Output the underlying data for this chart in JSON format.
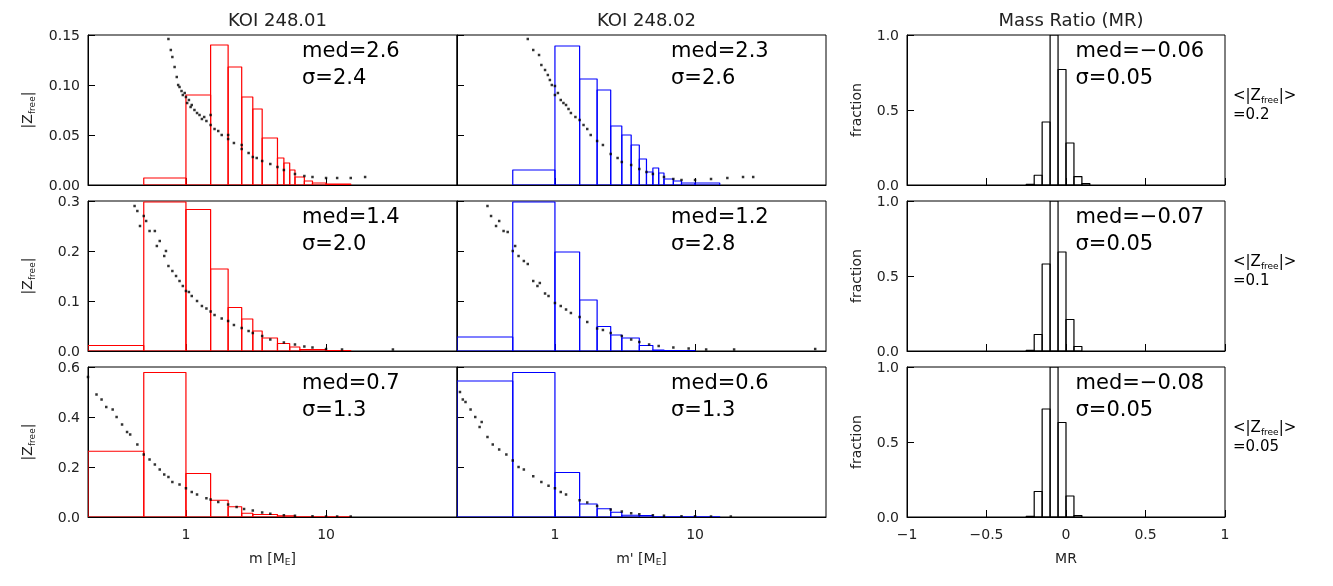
{
  "chart_data": [
    {
      "type": "scatter",
      "title": "KOI 248.01",
      "ylabel": "|Z$_{free}$|",
      "log": "x",
      "marker": "square",
      "tick_labels": "y",
      "xlim": [
        0.2,
        86
      ],
      "xticks": [
        1,
        10
      ],
      "ylim": [
        0,
        0.15
      ],
      "yticks": [
        {
          "value": 0,
          "label": "0.00"
        },
        {
          "value": 0.05,
          "label": "0.05"
        },
        {
          "value": 0.1,
          "label": "0.10"
        },
        {
          "value": 0.15,
          "label": "0.15"
        }
      ],
      "annotations": [
        "med=2.6",
        "σ=2.4"
      ],
      "series": [
        {
          "color": "#000000",
          "x": [
            0.75,
            0.78,
            0.8,
            0.83,
            0.86,
            0.88,
            0.9,
            0.93,
            0.95,
            0.98,
            1.0,
            1.02,
            1.05,
            1.08,
            1.1,
            1.15,
            1.2,
            1.25,
            1.3,
            1.35,
            1.4,
            1.5,
            1.5,
            1.6,
            1.7,
            1.8,
            2.0,
            2.0,
            2.2,
            2.5,
            2.5,
            2.8,
            3.0,
            3.2,
            3.5,
            4.0,
            4.5,
            5.0,
            6.0,
            7.0,
            8.0,
            10,
            12,
            15,
            19
          ],
          "values": [
            0.146,
            0.135,
            0.128,
            0.118,
            0.108,
            0.1,
            0.098,
            0.094,
            0.09,
            0.092,
            0.088,
            0.082,
            0.085,
            0.078,
            0.08,
            0.075,
            0.072,
            0.07,
            0.066,
            0.068,
            0.064,
            0.06,
            0.07,
            0.056,
            0.054,
            0.05,
            0.046,
            0.05,
            0.042,
            0.036,
            0.04,
            0.032,
            0.028,
            0.027,
            0.024,
            0.021,
            0.018,
            0.015,
            0.011,
            0.009,
            0.008,
            0.007,
            0.007,
            0.007,
            0.008
          ]
        },
        {
          "type": "histogram",
          "color": "#ff0000",
          "bins": [
            0.5,
            1,
            1.5,
            2,
            2.5,
            3,
            3.5,
            4.5,
            5,
            5.5,
            6,
            7,
            8,
            10,
            15
          ],
          "values": [
            0.007,
            0.09,
            0.14,
            0.118,
            0.088,
            0.076,
            0.047,
            0.027,
            0.022,
            0.015,
            0.008,
            0.004,
            0.002,
            0.001
          ]
        }
      ]
    },
    {
      "type": "scatter",
      "title": "KOI 248.02",
      "log": "x",
      "marker": "square",
      "tick_labels": false,
      "xlim": [
        0.2,
        86
      ],
      "xticks": [
        1,
        10
      ],
      "ylim": [
        0,
        0.15
      ],
      "yticks": [
        0,
        0.05,
        0.1,
        0.15
      ],
      "annotations": [
        "med=2.3",
        "σ=2.6"
      ],
      "series": [
        {
          "color": "#000000",
          "x": [
            0.64,
            0.7,
            0.77,
            0.8,
            0.85,
            0.89,
            0.92,
            0.95,
            1.0,
            1.0,
            1.05,
            1.1,
            1.15,
            1.2,
            1.25,
            1.3,
            1.4,
            1.5,
            1.6,
            1.7,
            1.8,
            2.0,
            2.2,
            2.5,
            2.8,
            3.0,
            3.5,
            4.0,
            4.5,
            5.0,
            6.0,
            7.0,
            8.0,
            10,
            13,
            17,
            22,
            26
          ],
          "values": [
            0.146,
            0.135,
            0.13,
            0.12,
            0.115,
            0.11,
            0.105,
            0.1,
            0.099,
            0.09,
            0.092,
            0.085,
            0.082,
            0.08,
            0.076,
            0.072,
            0.068,
            0.065,
            0.06,
            0.056,
            0.05,
            0.044,
            0.04,
            0.031,
            0.027,
            0.023,
            0.02,
            0.016,
            0.013,
            0.011,
            0.008,
            0.006,
            0.005,
            0.005,
            0.006,
            0.007,
            0.008,
            0.008
          ]
        },
        {
          "type": "histogram",
          "color": "#0000ff",
          "bins": [
            0.5,
            1,
            1.5,
            2,
            2.5,
            3,
            3.5,
            4,
            4.5,
            5,
            5.5,
            6,
            7,
            8,
            10,
            15
          ],
          "values": [
            0.015,
            0.139,
            0.106,
            0.095,
            0.059,
            0.05,
            0.04,
            0.026,
            0.013,
            0.017,
            0.012,
            0.006,
            0.004,
            0.002,
            0.002
          ]
        }
      ]
    },
    {
      "type": "histogram",
      "title": "Mass Ratio (MR)",
      "ylabel": "fraction",
      "tick_labels": "y",
      "color": "#000000",
      "xlim": [
        -1,
        1
      ],
      "xticks": [
        -1,
        -0.5,
        0,
        0.5,
        1
      ],
      "ylim": [
        0,
        1
      ],
      "yticks": [
        {
          "value": 0,
          "label": "0.0"
        },
        0.5,
        {
          "value": 1,
          "label": "1.0"
        }
      ],
      "annotations": [
        "med=−0.06",
        "σ=0.05",
        "<|Z$_{free}$|>\n=0.2"
      ],
      "bins": [
        -0.25,
        -0.2,
        -0.15,
        -0.1,
        -0.05,
        0,
        0.05,
        0.1,
        0.15
      ],
      "values": [
        0.005,
        0.065,
        0.42,
        1.0,
        0.77,
        0.28,
        0.056,
        0.01
      ]
    },
    {
      "type": "scatter",
      "ylabel": "|Z$_{free}$|",
      "log": "x",
      "marker": "square",
      "tick_labels": "y",
      "xlim": [
        0.2,
        86
      ],
      "xticks": [
        1,
        10
      ],
      "ylim": [
        0,
        0.3
      ],
      "yticks": [
        {
          "value": 0,
          "label": "0.0"
        },
        0.1,
        0.2,
        0.3
      ],
      "annotations": [
        "med=1.4",
        "σ=2.0"
      ],
      "series": [
        {
          "color": "#000000",
          "x": [
            0.43,
            0.45,
            0.47,
            0.5,
            0.52,
            0.55,
            0.6,
            0.62,
            0.65,
            0.7,
            0.72,
            0.75,
            0.8,
            0.85,
            0.9,
            0.95,
            1.0,
            1.05,
            1.1,
            1.2,
            1.3,
            1.4,
            1.5,
            1.6,
            1.8,
            2.0,
            2.2,
            2.5,
            2.8,
            3.0,
            3.5,
            4.0,
            5.0,
            6.0,
            7.0,
            8.0,
            10,
            13,
            30
          ],
          "values": [
            0.29,
            0.28,
            0.25,
            0.27,
            0.26,
            0.24,
            0.24,
            0.21,
            0.22,
            0.19,
            0.2,
            0.17,
            0.16,
            0.15,
            0.14,
            0.13,
            0.12,
            0.118,
            0.11,
            0.1,
            0.09,
            0.085,
            0.079,
            0.072,
            0.065,
            0.06,
            0.052,
            0.046,
            0.04,
            0.036,
            0.03,
            0.023,
            0.017,
            0.013,
            0.009,
            0.007,
            0.004,
            0.003,
            0.003
          ]
        },
        {
          "type": "histogram",
          "color": "#ff0000",
          "bins": [
            0.2,
            0.5,
            1,
            1.5,
            2,
            2.5,
            3,
            3.5,
            4.5,
            5.5,
            6.5,
            10,
            15
          ],
          "values": [
            0.011,
            0.298,
            0.283,
            0.164,
            0.087,
            0.064,
            0.04,
            0.026,
            0.015,
            0.008,
            0.003,
            0.001
          ]
        }
      ]
    },
    {
      "type": "scatter",
      "log": "x",
      "marker": "square",
      "tick_labels": false,
      "xlim": [
        0.2,
        86
      ],
      "xticks": [
        1,
        10
      ],
      "ylim": [
        0,
        0.3
      ],
      "yticks": [
        0,
        0.1,
        0.2,
        0.3
      ],
      "annotations": [
        "med=1.2",
        "σ=2.8"
      ],
      "series": [
        {
          "color": "#000000",
          "x": [
            0.33,
            0.35,
            0.38,
            0.4,
            0.43,
            0.46,
            0.5,
            0.52,
            0.55,
            0.6,
            0.64,
            0.7,
            0.75,
            0.78,
            0.85,
            0.9,
            1.0,
            1.1,
            1.2,
            1.3,
            1.5,
            1.7,
            2.0,
            2.2,
            2.5,
            3.0,
            3.5,
            4.0,
            4.7,
            5.5,
            7.0,
            9.0,
            12,
            19,
            72
          ],
          "values": [
            0.29,
            0.27,
            0.25,
            0.26,
            0.24,
            0.238,
            0.2,
            0.21,
            0.19,
            0.18,
            0.174,
            0.14,
            0.13,
            0.136,
            0.115,
            0.11,
            0.096,
            0.09,
            0.083,
            0.076,
            0.068,
            0.058,
            0.045,
            0.042,
            0.036,
            0.03,
            0.023,
            0.018,
            0.013,
            0.01,
            0.007,
            0.005,
            0.003,
            0.003,
            0.004
          ]
        },
        {
          "type": "histogram",
          "color": "#0000ff",
          "bins": [
            0.2,
            0.5,
            1,
            1.5,
            2,
            2.5,
            3,
            4,
            5,
            6,
            10
          ],
          "values": [
            0.028,
            0.298,
            0.198,
            0.102,
            0.049,
            0.032,
            0.026,
            0.011,
            0.002,
            0.001
          ]
        }
      ]
    },
    {
      "type": "histogram",
      "ylabel": "fraction",
      "tick_labels": "y",
      "color": "#000000",
      "xlim": [
        -1,
        1
      ],
      "xticks": [
        -1,
        -0.5,
        0,
        0.5,
        1
      ],
      "ylim": [
        0,
        1
      ],
      "yticks": [
        {
          "value": 0,
          "label": "0.0"
        },
        0.5,
        {
          "value": 1,
          "label": "1.0"
        }
      ],
      "annotations": [
        "med=−0.07",
        "σ=0.05",
        "<|Z$_{free}$|>\n=0.1"
      ],
      "bins": [
        -0.25,
        -0.2,
        -0.15,
        -0.1,
        -0.05,
        0,
        0.05,
        0.1
      ],
      "values": [
        0.005,
        0.11,
        0.58,
        1.0,
        0.66,
        0.21,
        0.03
      ]
    },
    {
      "type": "scatter",
      "xlabel": "m [M$_{E}$]",
      "ylabel": "|Z$_{free}$|",
      "log": "x",
      "marker": "square",
      "xlim": [
        0.2,
        86
      ],
      "xticks": [
        1,
        10
      ],
      "ylim": [
        0,
        0.6
      ],
      "yticks": [
        {
          "value": 0,
          "label": "0.0"
        },
        0.2,
        0.4,
        0.6
      ],
      "annotations": [
        "med=0.7",
        "σ=1.3"
      ],
      "series": [
        {
          "color": "#000000",
          "x": [
            0.2,
            0.23,
            0.25,
            0.27,
            0.3,
            0.32,
            0.35,
            0.38,
            0.4,
            0.45,
            0.5,
            0.55,
            0.6,
            0.65,
            0.7,
            0.75,
            0.8,
            0.9,
            1.0,
            1.1,
            1.2,
            1.4,
            1.5,
            1.7,
            2.0,
            2.3,
            2.6,
            3.0,
            3.5,
            4.0,
            5.0,
            6.0,
            8.0,
            10,
            12,
            15
          ],
          "values": [
            0.56,
            0.49,
            0.47,
            0.44,
            0.43,
            0.4,
            0.37,
            0.34,
            0.33,
            0.29,
            0.25,
            0.23,
            0.21,
            0.19,
            0.17,
            0.16,
            0.14,
            0.13,
            0.115,
            0.1,
            0.09,
            0.075,
            0.07,
            0.06,
            0.05,
            0.04,
            0.032,
            0.026,
            0.018,
            0.013,
            0.007,
            0.005,
            0.003,
            0.002,
            0.002,
            0.002
          ]
        },
        {
          "type": "histogram",
          "color": "#ff0000",
          "bins": [
            0.2,
            0.5,
            1,
            1.5,
            2,
            2.5,
            3,
            4.5,
            6,
            15
          ],
          "values": [
            0.263,
            0.578,
            0.174,
            0.067,
            0.041,
            0.015,
            0.01,
            0.005,
            0.001
          ]
        }
      ]
    },
    {
      "type": "scatter",
      "xlabel": "m' [M$_{E}$]",
      "log": "x",
      "marker": "square",
      "tick_labels": "x",
      "xlim": [
        0.2,
        86
      ],
      "xticks": [
        1,
        10
      ],
      "ylim": [
        0,
        0.6
      ],
      "yticks": [
        0,
        0.2,
        0.4,
        0.6
      ],
      "annotations": [
        "med=0.6",
        "σ=1.3"
      ],
      "series": [
        {
          "color": "#000000",
          "x": [
            0.21,
            0.22,
            0.23,
            0.25,
            0.27,
            0.29,
            0.3,
            0.33,
            0.36,
            0.4,
            0.45,
            0.5,
            0.55,
            0.6,
            0.7,
            0.8,
            0.9,
            1.0,
            1.1,
            1.2,
            1.5,
            1.7,
            2.0,
            2.5,
            3.0,
            3.5,
            4.0,
            5.0,
            6.0,
            8.0,
            10,
            13,
            18
          ],
          "values": [
            0.5,
            0.47,
            0.46,
            0.43,
            0.4,
            0.36,
            0.38,
            0.32,
            0.29,
            0.27,
            0.25,
            0.226,
            0.2,
            0.19,
            0.163,
            0.14,
            0.125,
            0.115,
            0.1,
            0.09,
            0.067,
            0.058,
            0.044,
            0.03,
            0.022,
            0.015,
            0.011,
            0.007,
            0.005,
            0.003,
            0.003,
            0.002,
            0.002
          ]
        },
        {
          "type": "histogram",
          "color": "#0000ff",
          "bins": [
            0.2,
            0.5,
            1,
            1.5,
            2,
            2.5,
            3,
            4,
            5,
            15
          ],
          "values": [
            0.544,
            0.578,
            0.178,
            0.052,
            0.033,
            0.019,
            0.007,
            0.006,
            0.001
          ]
        }
      ]
    },
    {
      "type": "histogram",
      "xlabel": "MR",
      "ylabel": "fraction",
      "color": "#000000",
      "xlim": [
        -1,
        1
      ],
      "xticks": [
        {
          "value": -1,
          "label": "−1"
        },
        {
          "value": -0.5,
          "label": "−0.5"
        },
        0,
        0.5,
        1
      ],
      "ylim": [
        0,
        1
      ],
      "yticks": [
        {
          "value": 0,
          "label": "0.0"
        },
        0.5,
        {
          "value": 1,
          "label": "1.0"
        }
      ],
      "annotations": [
        "med=−0.08",
        "σ=0.05",
        "<|Z$_{free}$|>\n=0.05"
      ],
      "bins": [
        -0.25,
        -0.2,
        -0.15,
        -0.1,
        -0.05,
        0,
        0.05,
        0.1
      ],
      "values": [
        0.005,
        0.17,
        0.72,
        1.0,
        0.63,
        0.14,
        0.01
      ]
    }
  ]
}
